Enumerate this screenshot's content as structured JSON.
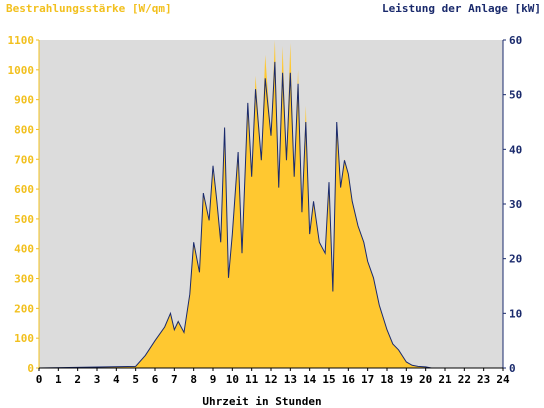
{
  "chart_data": {
    "type": "area",
    "left_axis_label": "Bestrahlungsstärke [W/qm]",
    "right_axis_label": "Leistung der Anlage [kW]",
    "xlabel": "Uhrzeit in Stunden",
    "xlim": [
      0,
      24
    ],
    "ylim_left": [
      0,
      1100
    ],
    "ylim_right": [
      0,
      60
    ],
    "x_ticks": [
      "0",
      "1",
      "2",
      "3",
      "4",
      "5",
      "6",
      "7",
      "8",
      "9",
      "10",
      "11",
      "12",
      "13",
      "14",
      "15",
      "16",
      "17",
      "18",
      "19",
      "20",
      "21",
      "22",
      "23",
      "24"
    ],
    "y_ticks_left": [
      "0",
      "100",
      "200",
      "300",
      "400",
      "500",
      "600",
      "700",
      "800",
      "900",
      "1000",
      "1100"
    ],
    "y_ticks_right": [
      "0",
      "10",
      "20",
      "30",
      "40",
      "50",
      "60"
    ],
    "grid": false,
    "colors": {
      "plot_background": "#dcdcdc",
      "irradiance_fill": "#ffc830",
      "power_line": "#1a2a6c",
      "left_axis_text": "#f2c01e",
      "right_axis_text": "#1a2a6c"
    },
    "series": [
      {
        "axis": "left",
        "style": "area",
        "x": [
          0,
          5,
          5.5,
          6,
          6.5,
          6.8,
          7,
          7.2,
          7.5,
          7.8,
          8,
          8.3,
          8.5,
          8.8,
          9,
          9.2,
          9.4,
          9.6,
          9.8,
          10,
          10.3,
          10.5,
          10.8,
          11,
          11.2,
          11.5,
          11.7,
          12,
          12.2,
          12.4,
          12.6,
          12.8,
          13,
          13.2,
          13.4,
          13.6,
          13.8,
          14,
          14.2,
          14.5,
          14.8,
          15,
          15.2,
          15.4,
          15.6,
          15.8,
          16,
          16.2,
          16.5,
          16.8,
          17,
          17.3,
          17.6,
          18,
          18.3,
          18.6,
          18.8,
          19,
          19.3,
          19.6,
          20,
          20.3,
          20.6,
          21,
          24
        ],
        "y": [
          0,
          5,
          40,
          90,
          140,
          180,
          130,
          160,
          120,
          250,
          420,
          320,
          580,
          500,
          660,
          560,
          420,
          780,
          300,
          450,
          720,
          380,
          880,
          640,
          980,
          700,
          1050,
          780,
          1100,
          600,
          1080,
          700,
          1090,
          640,
          1000,
          520,
          880,
          450,
          560,
          420,
          380,
          620,
          260,
          820,
          600,
          700,
          650,
          560,
          480,
          420,
          360,
          300,
          210,
          130,
          80,
          60,
          40,
          20,
          10,
          5,
          3,
          0,
          0,
          0,
          0
        ]
      },
      {
        "axis": "right",
        "style": "line",
        "x": [
          0,
          5,
          5.5,
          6,
          6.5,
          6.8,
          7,
          7.2,
          7.5,
          7.8,
          8,
          8.3,
          8.5,
          8.8,
          9,
          9.2,
          9.4,
          9.6,
          9.8,
          10,
          10.3,
          10.5,
          10.8,
          11,
          11.2,
          11.5,
          11.7,
          12,
          12.2,
          12.4,
          12.6,
          12.8,
          13,
          13.2,
          13.4,
          13.6,
          13.8,
          14,
          14.2,
          14.5,
          14.8,
          15,
          15.2,
          15.4,
          15.6,
          15.8,
          16,
          16.2,
          16.5,
          16.8,
          17,
          17.3,
          17.6,
          18,
          18.3,
          18.6,
          18.8,
          19,
          19.3,
          19.6,
          20,
          20.3,
          20.6,
          21,
          24
        ],
        "y": [
          0,
          0.3,
          2.3,
          5,
          7.5,
          10,
          7,
          8.5,
          6.5,
          13.5,
          23,
          17.5,
          32,
          27,
          37,
          30.5,
          23,
          44,
          16.5,
          24.5,
          39.5,
          21,
          48.5,
          35,
          51,
          38,
          53,
          42.5,
          56,
          33,
          54,
          38,
          54,
          35,
          52,
          28.5,
          45,
          24.5,
          30.5,
          23,
          21,
          34,
          14,
          45,
          33,
          38,
          35.5,
          30.5,
          26,
          23,
          19.5,
          16.5,
          11.5,
          7,
          4.4,
          3.3,
          2.2,
          1.1,
          0.5,
          0.3,
          0.2,
          0,
          0,
          0,
          0
        ]
      }
    ]
  }
}
